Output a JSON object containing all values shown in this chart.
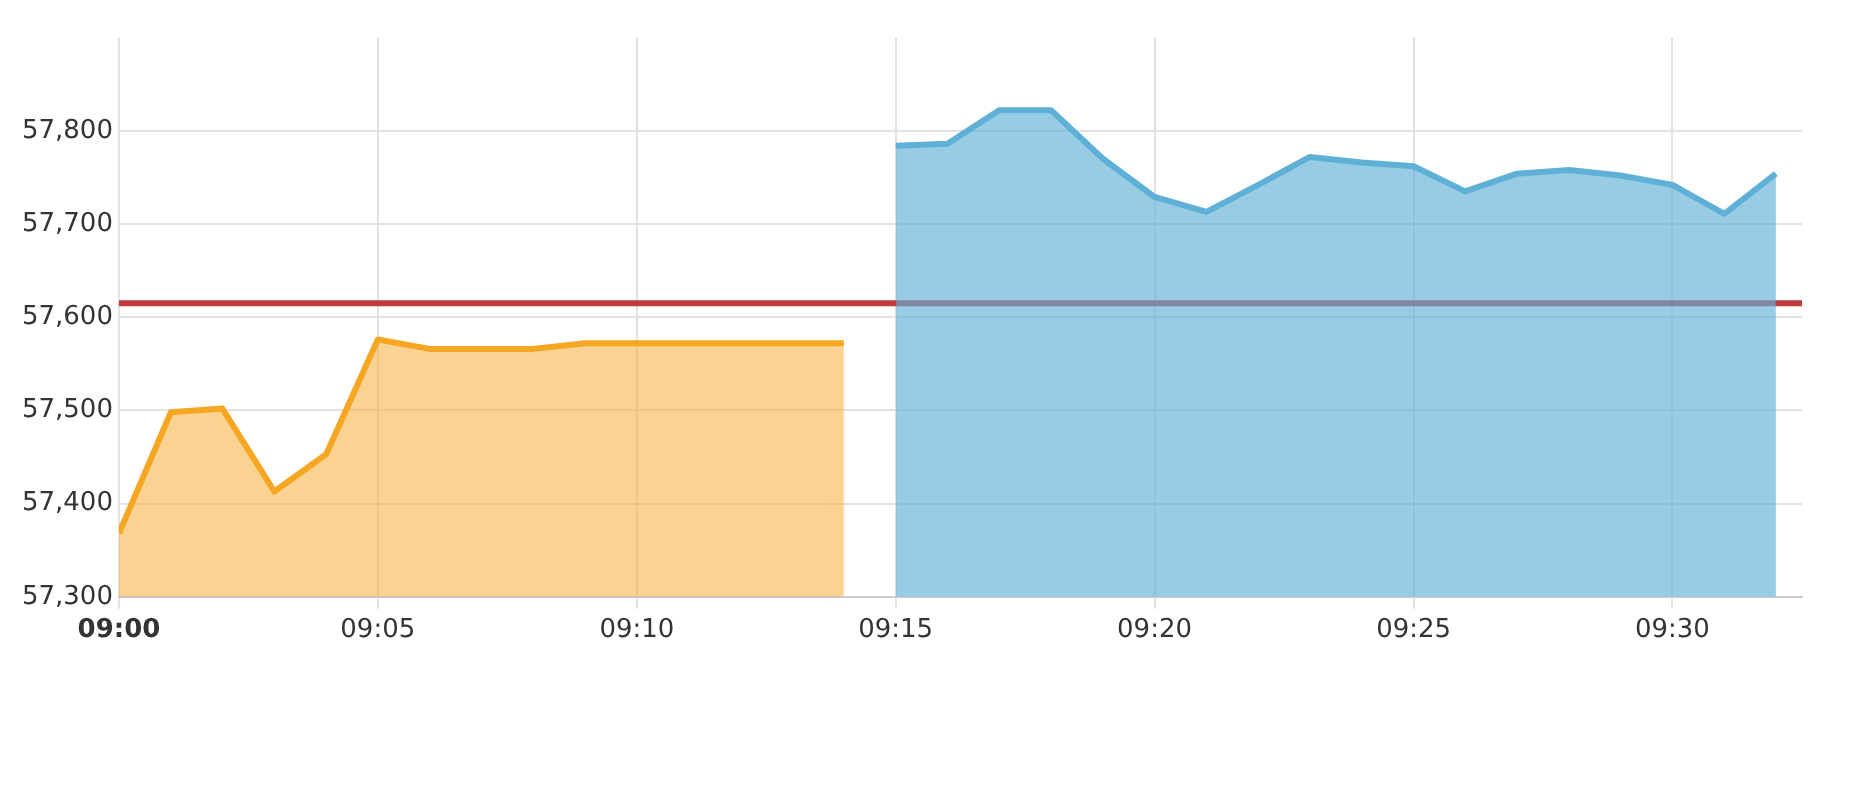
{
  "chart_data": {
    "type": "area",
    "xlim": [
      9,
      9.5417
    ],
    "xticks": [
      {
        "value": 9,
        "label": "09:00"
      },
      {
        "value": 9.0833,
        "label": "09:05"
      },
      {
        "value": 9.1667,
        "label": "09:10"
      },
      {
        "value": 9.25,
        "label": "09:15"
      },
      {
        "value": 9.3333,
        "label": "09:20"
      },
      {
        "value": 9.4167,
        "label": "09:25"
      },
      {
        "value": 9.5,
        "label": "09:30"
      }
    ],
    "ylim": [
      57300,
      57900
    ],
    "yticks": [
      {
        "value": 57300,
        "label": "57,300"
      },
      {
        "value": 57400,
        "label": "57,400"
      },
      {
        "value": 57500,
        "label": "57,500"
      },
      {
        "value": 57600,
        "label": "57,600"
      },
      {
        "value": 57700,
        "label": "57,700"
      },
      {
        "value": 57800,
        "label": "57,800"
      }
    ],
    "grid": true,
    "legend": false,
    "ref_lines": [
      {
        "axis": "y",
        "value": 57615,
        "color": "#c0393b"
      }
    ],
    "series": [
      {
        "color": "#f5a623",
        "x": [
          9,
          9.0167,
          9.0333,
          9.05,
          9.0667,
          9.0833,
          9.1,
          9.1167,
          9.1333,
          9.15,
          9.1667,
          9.1833,
          9.2,
          9.2167,
          9.2333
        ],
        "values": [
          57368,
          57498,
          57502,
          57413,
          57453,
          57576,
          57566,
          57566,
          57566,
          57572,
          57572,
          57572,
          57572,
          57572,
          57572
        ]
      },
      {
        "color": "#5fb0d6",
        "x": [
          9.25,
          9.2667,
          9.2833,
          9.3,
          9.3167,
          9.3333,
          9.35,
          9.3667,
          9.3833,
          9.4,
          9.4167,
          9.4333,
          9.45,
          9.4667,
          9.4833,
          9.5,
          9.5167,
          9.5333
        ],
        "values": [
          57784,
          57786,
          57822,
          57822,
          57770,
          57729,
          57713,
          57742,
          57772,
          57766,
          57762,
          57735,
          57754,
          57758,
          57752,
          57742,
          57711,
          57754
        ]
      }
    ]
  }
}
